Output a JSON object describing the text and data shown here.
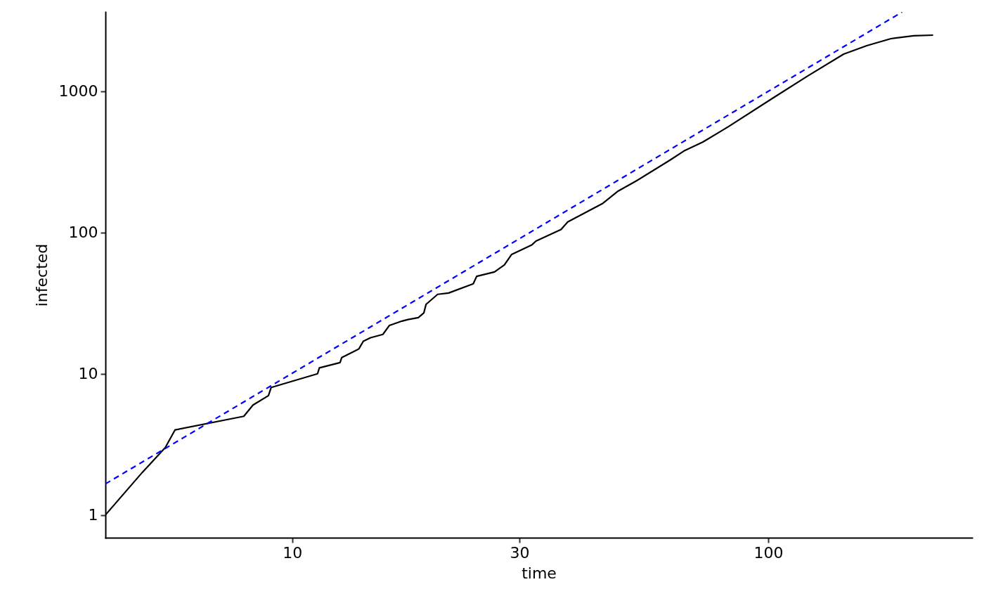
{
  "chart_data": {
    "type": "line",
    "xlabel": "time",
    "ylabel": "infected",
    "log": "xy",
    "xlim": [
      4.05,
      268
    ],
    "ylim": [
      0.69,
      3650
    ],
    "xticks": [
      10,
      30,
      100
    ],
    "yticks": [
      1,
      10,
      100,
      1000
    ],
    "grid": false,
    "marker": "none",
    "series": [
      {
        "color": "#000000",
        "line_style": "solid",
        "x": [
          4.05,
          4.84,
          5.41,
          5.67,
          7.91,
          8.27,
          8.91,
          9.03,
          11.3,
          11.4,
          12.6,
          12.7,
          13.8,
          14.1,
          14.6,
          15.5,
          16.0,
          17.0,
          17.5,
          18.4,
          18.9,
          19.1,
          20.2,
          21.3,
          24.0,
          24.4,
          26.6,
          27.9,
          28.9,
          31.9,
          32.5,
          36.7,
          37.9,
          44.8,
          48.4,
          52.7,
          62.1,
          66.5,
          72.9,
          82.6,
          102,
          121,
          144,
          161,
          181,
          202,
          222
        ],
        "values": [
          1,
          2,
          3,
          4,
          5,
          6,
          7,
          8,
          10,
          11,
          12,
          13,
          15,
          17,
          18,
          19,
          22,
          23.6,
          24.2,
          25,
          27,
          31,
          36.5,
          37.3,
          43.4,
          49,
          52.6,
          59,
          70,
          82,
          87,
          105,
          119,
          160,
          197,
          231,
          325,
          378,
          438,
          564,
          891,
          1285,
          1836,
          2106,
          2361,
          2473,
          2500
        ]
      },
      {
        "type": "line",
        "color": "#0000ff",
        "line_style": "dashed",
        "x": [
          4.05,
          191
        ],
        "values": [
          1.66,
          3640
        ]
      }
    ]
  }
}
